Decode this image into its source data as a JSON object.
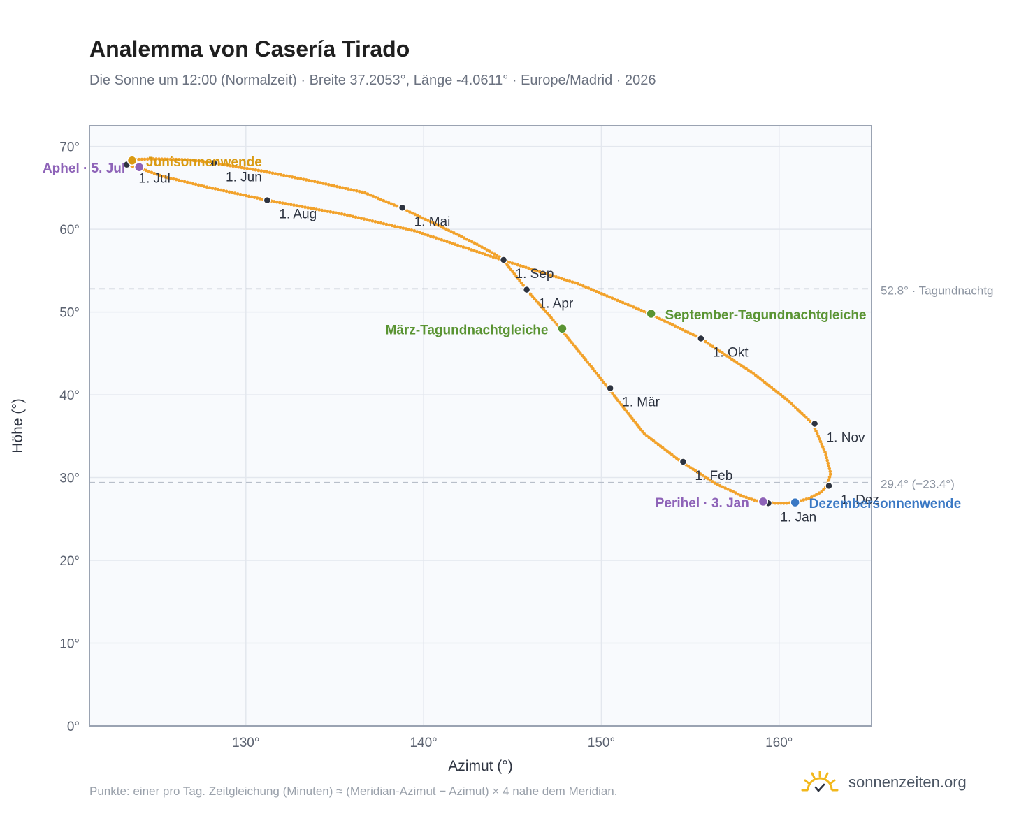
{
  "header": {
    "title": "Analemma von Casería Tirado",
    "subtitle": "Die Sonne um 12:00 (Normalzeit) · Breite 37.2053°, Länge -4.0611° · Europe/Madrid · 2026"
  },
  "footer": {
    "note": "Punkte: einer pro Tag. Zeitgleichung (Minuten) ≈ (Meridian-Azimut − Azimut) × 4 nahe dem Meridian.",
    "brand": "sonnenzeiten.org",
    "brand_icon": "sun-check-icon"
  },
  "colors": {
    "curve": "#f2a22b",
    "month_marker": "#2d3340",
    "solstice_june": "#d99a12",
    "solstice_december": "#3a78c4",
    "equinox": "#5a9433",
    "apsis": "#8e63b8",
    "reference_line": "#b8bfca",
    "plot_bg": "#f8fafd",
    "axis_frame": "#9aa3b2"
  },
  "chart_data": {
    "type": "scatter",
    "xlabel": "Azimut (°)",
    "ylabel": "Höhe (°)",
    "xlim": [
      121.2,
      165.2
    ],
    "ylim": [
      0,
      72.5
    ],
    "x_ticks": [
      130,
      140,
      150,
      160
    ],
    "y_ticks": [
      0,
      10,
      20,
      30,
      40,
      50,
      60,
      70
    ],
    "x_tick_labels": [
      "130°",
      "140°",
      "150°",
      "160°"
    ],
    "y_tick_labels": [
      "0°",
      "10°",
      "20°",
      "30°",
      "40°",
      "50°",
      "60°",
      "70°"
    ],
    "grid": true,
    "path": [
      [
        159.3,
        27.0
      ],
      [
        159.8,
        26.9
      ],
      [
        160.4,
        26.9
      ],
      [
        160.9,
        27.0
      ],
      [
        161.7,
        27.5
      ],
      [
        162.4,
        28.3
      ],
      [
        162.7,
        29.0
      ],
      [
        162.9,
        30.5
      ],
      [
        162.6,
        33.0
      ],
      [
        161.9,
        36.5
      ],
      [
        160.4,
        39.5
      ],
      [
        158.6,
        42.5
      ],
      [
        155.6,
        46.8
      ],
      [
        152.7,
        49.8
      ],
      [
        148.7,
        53.4
      ],
      [
        144.4,
        56.3
      ],
      [
        139.5,
        59.8
      ],
      [
        135.5,
        61.8
      ],
      [
        131.2,
        63.5
      ],
      [
        127.8,
        65.1
      ],
      [
        125.3,
        66.4
      ],
      [
        124.0,
        67.4
      ],
      [
        123.3,
        67.8
      ],
      [
        123.6,
        68.4
      ],
      [
        124.8,
        68.5
      ],
      [
        126.7,
        68.4
      ],
      [
        128.2,
        68.0
      ],
      [
        131.0,
        67.0
      ],
      [
        134.0,
        65.7
      ],
      [
        136.7,
        64.4
      ],
      [
        138.7,
        62.6
      ],
      [
        140.9,
        60.4
      ],
      [
        142.9,
        58.3
      ],
      [
        144.4,
        56.5
      ],
      [
        145.8,
        52.7
      ],
      [
        147.7,
        48.0
      ],
      [
        150.4,
        40.8
      ],
      [
        152.4,
        35.3
      ],
      [
        154.5,
        31.9
      ],
      [
        156.4,
        29.3
      ],
      [
        157.9,
        27.8
      ],
      [
        158.7,
        27.2
      ],
      [
        159.3,
        27.0
      ]
    ],
    "month_markers": [
      {
        "label": "1. Jan",
        "x": 159.4,
        "y": 26.9
      },
      {
        "label": "1. Feb",
        "x": 154.6,
        "y": 31.9
      },
      {
        "label": "1. Mär",
        "x": 150.5,
        "y": 40.8
      },
      {
        "label": "1. Apr",
        "x": 145.8,
        "y": 52.7
      },
      {
        "label": "1. Mai",
        "x": 138.8,
        "y": 62.6
      },
      {
        "label": "1. Jun",
        "x": 128.2,
        "y": 68.0
      },
      {
        "label": "1. Jul",
        "x": 123.3,
        "y": 67.8
      },
      {
        "label": "1. Aug",
        "x": 131.2,
        "y": 63.5
      },
      {
        "label": "1. Sep",
        "x": 144.5,
        "y": 56.3
      },
      {
        "label": "1. Okt",
        "x": 155.6,
        "y": 46.8
      },
      {
        "label": "1. Nov",
        "x": 162.0,
        "y": 36.5
      },
      {
        "label": "1. Dez",
        "x": 162.8,
        "y": 29.0
      }
    ],
    "events": [
      {
        "label": "Junisonnenwende",
        "x": 123.6,
        "y": 68.3,
        "color": "#d99a12",
        "anchor": "right"
      },
      {
        "label": "Aphel · 5. Jul",
        "x": 124.0,
        "y": 67.5,
        "color": "#8e63b8",
        "anchor": "left"
      },
      {
        "label": "März-Tagundnachtgleiche",
        "x": 147.8,
        "y": 48.0,
        "color": "#5a9433",
        "anchor": "left"
      },
      {
        "label": "September-Tagundnachtgleiche",
        "x": 152.8,
        "y": 49.8,
        "color": "#5a9433",
        "anchor": "right"
      },
      {
        "label": "Perihel · 3. Jan",
        "x": 159.1,
        "y": 27.1,
        "color": "#8e63b8",
        "anchor": "left"
      },
      {
        "label": "Dezembersonnenwende",
        "x": 160.9,
        "y": 27.0,
        "color": "#3a78c4",
        "anchor": "right"
      }
    ],
    "reference_lines": [
      {
        "y": 52.8,
        "label": "52.8° · Tagundnachtg"
      },
      {
        "y": 29.4,
        "label": "29.4° (−23.4°)"
      }
    ]
  }
}
